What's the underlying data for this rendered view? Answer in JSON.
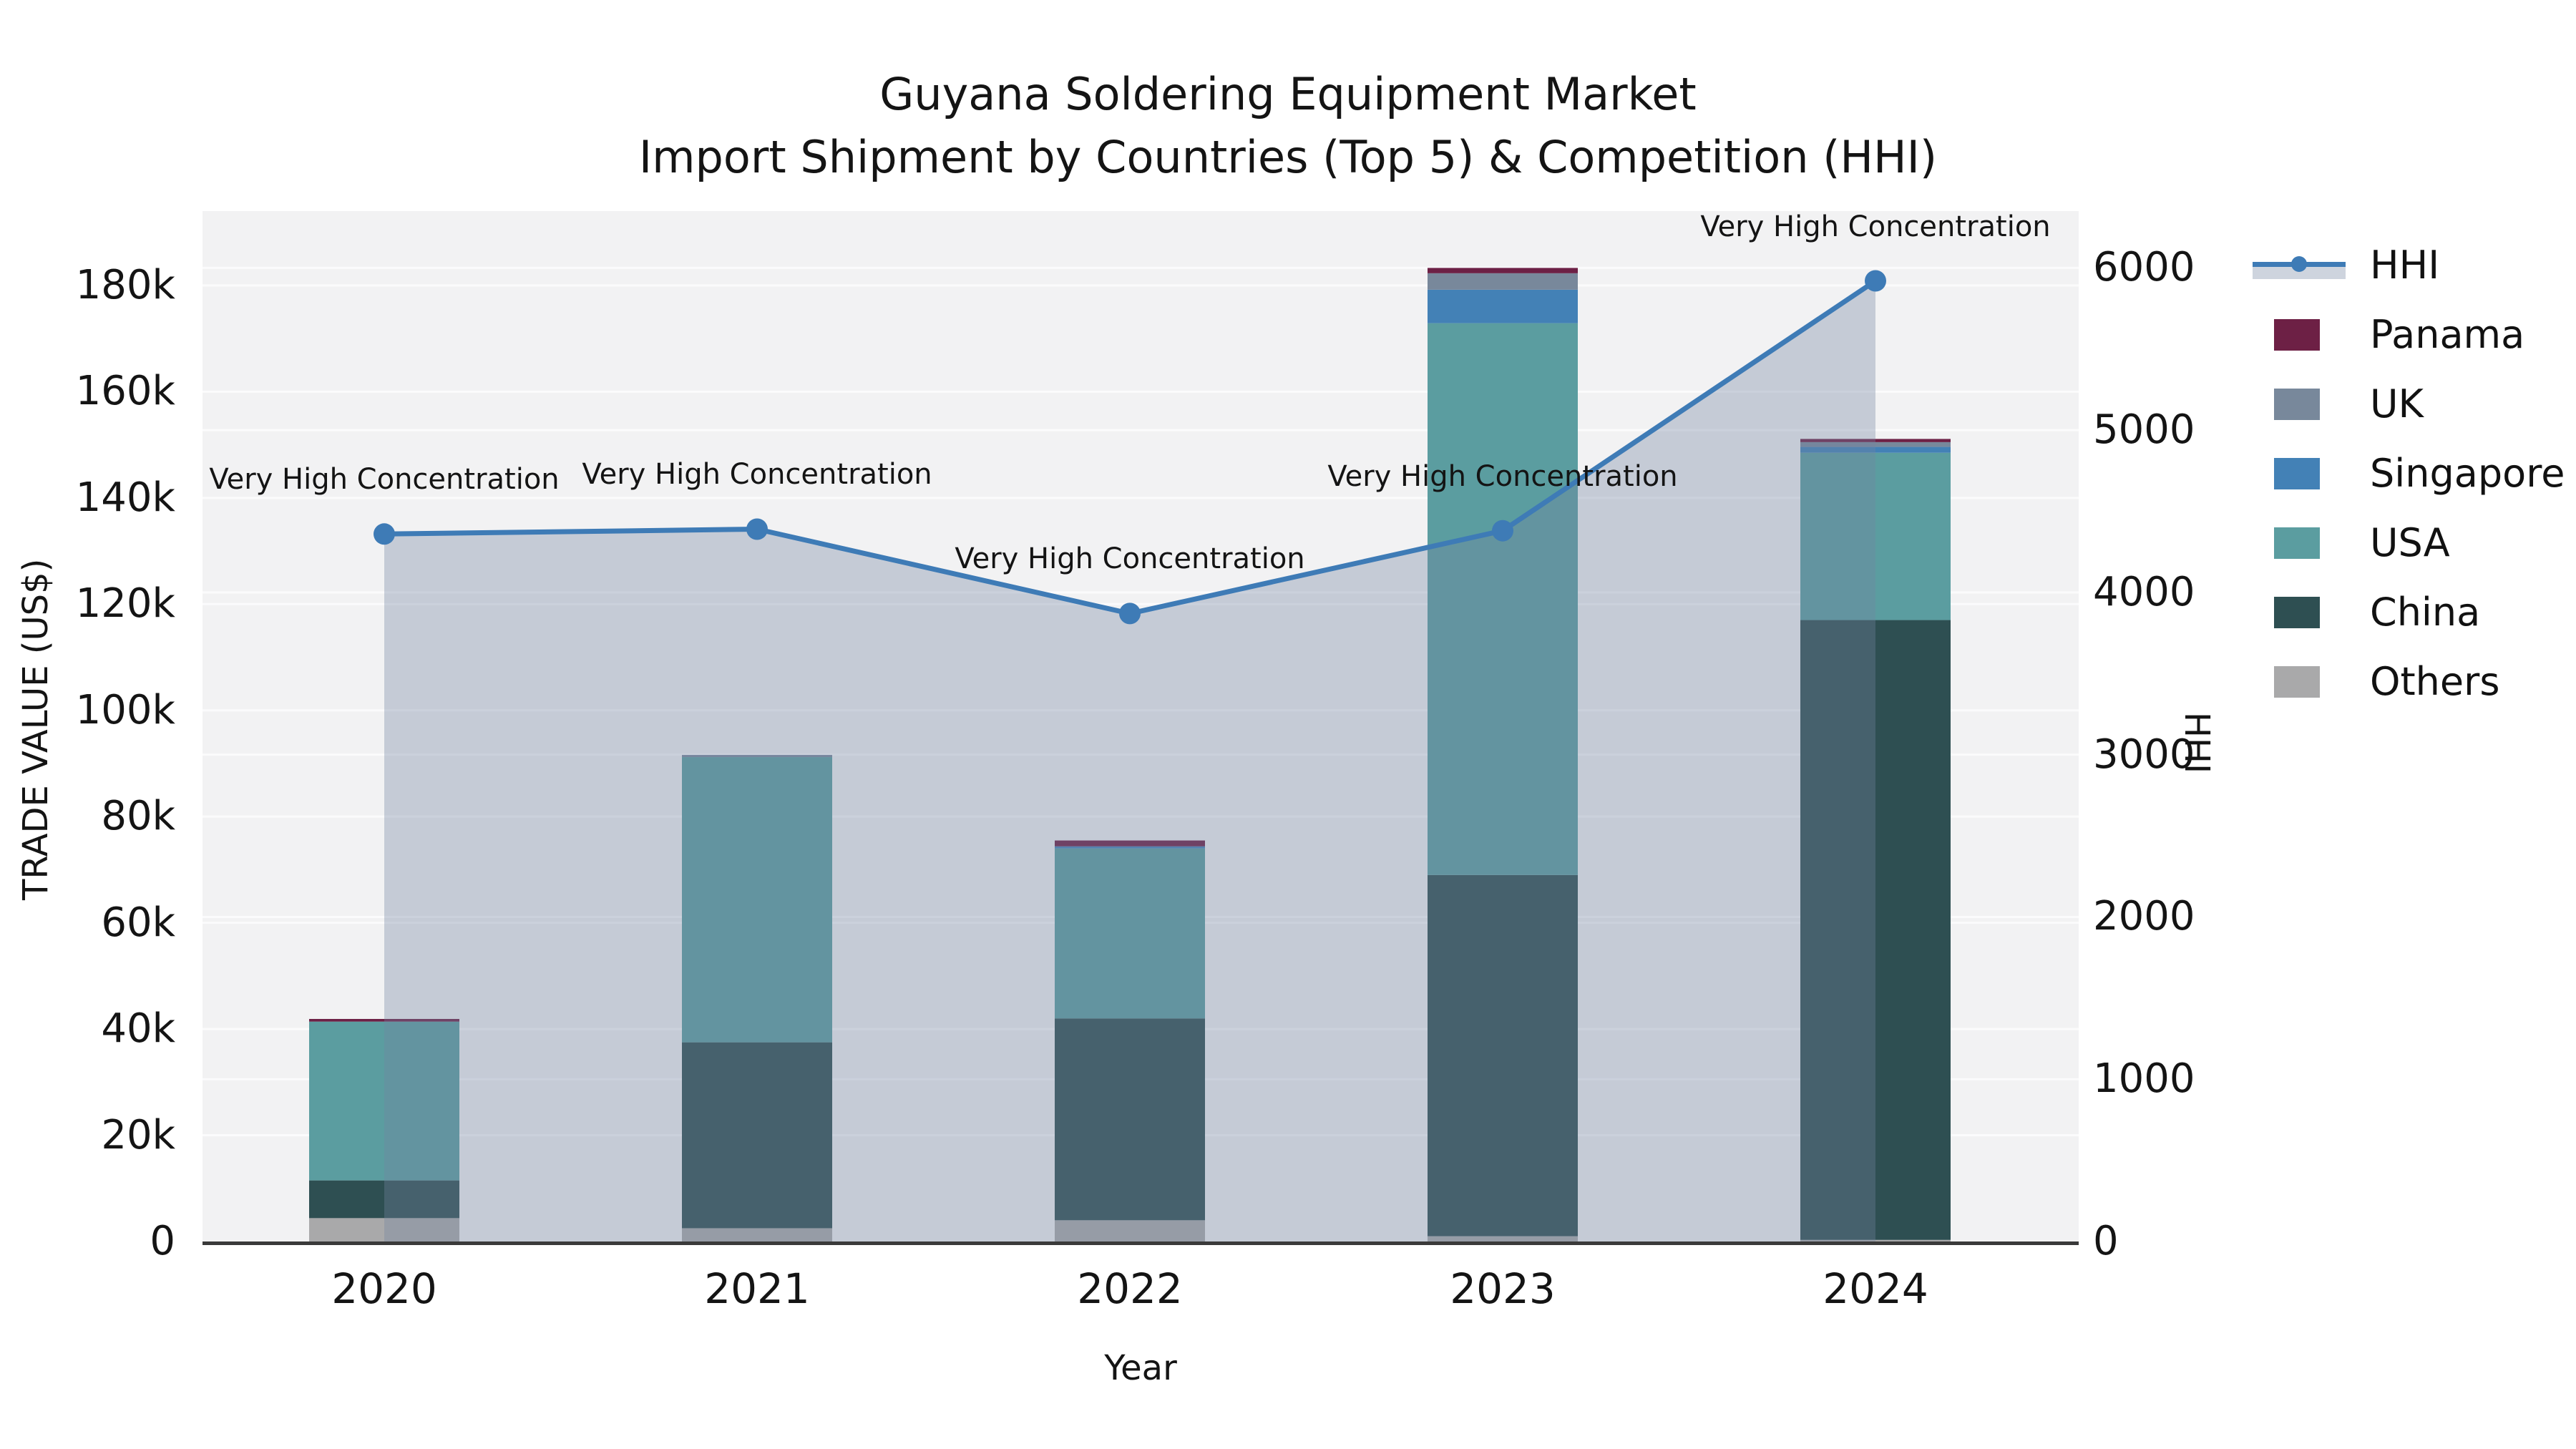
{
  "title": {
    "line1": "Guyana Soldering Equipment Market",
    "line2": "Import Shipment by Countries (Top 5) & Competition (HHI)"
  },
  "axes": {
    "x_label": "Year",
    "y_left_label": "TRADE VALUE (US$)",
    "y_right_label": "HHI",
    "x_tick_labels": [
      "2020",
      "2021",
      "2022",
      "2023",
      "2024"
    ],
    "y_left_tick_labels": [
      "0",
      "20k",
      "40k",
      "60k",
      "80k",
      "100k",
      "120k",
      "140k",
      "160k",
      "180k"
    ],
    "y_left_tick_values": [
      0,
      20000,
      40000,
      60000,
      80000,
      100000,
      120000,
      140000,
      160000,
      180000
    ],
    "y_right_tick_labels": [
      "0",
      "1000",
      "2000",
      "3000",
      "4000",
      "5000",
      "6000"
    ],
    "y_right_tick_values": [
      0,
      1000,
      2000,
      3000,
      4000,
      5000,
      6000
    ]
  },
  "legend": [
    {
      "label": "HHI",
      "type": "line",
      "color": "#3e7bb6"
    },
    {
      "label": "Panama",
      "type": "box",
      "color": "#6d2045"
    },
    {
      "label": "UK",
      "type": "box",
      "color": "#78889b"
    },
    {
      "label": "Singapore",
      "type": "box",
      "color": "#4381b6"
    },
    {
      "label": "USA",
      "type": "box",
      "color": "#5b9da0"
    },
    {
      "label": "China",
      "type": "box",
      "color": "#2e4f52"
    },
    {
      "label": "Others",
      "type": "box",
      "color": "#a9a9aa"
    }
  ],
  "colors": {
    "figure_background": "#ffffff",
    "plot_background": "#f2f2f3",
    "gridline": "rgba(255,255,255,0.7)",
    "axis_spine": "#3a3a3a",
    "hhi_line": "#3e7bb6",
    "hhi_area_fill": "rgba(116,133,160,0.35)",
    "text": "#141414"
  },
  "chart_data": {
    "type": "bar",
    "subtype": "stacked-bars-with-line-overlay",
    "title": "Guyana Soldering Equipment Market — Import Shipment by Countries (Top 5) & Competition (HHI)",
    "xlabel": "Year",
    "ylabel_left": "TRADE VALUE (US$)",
    "ylabel_right": "HHI",
    "categories": [
      "2020",
      "2021",
      "2022",
      "2023",
      "2024"
    ],
    "stack_order_bottom_to_top": [
      "Others",
      "China",
      "USA",
      "Singapore",
      "UK",
      "Panama"
    ],
    "series": [
      {
        "name": "Others",
        "color": "#a9a9aa",
        "values": [
          4400,
          2500,
          4000,
          1000,
          300
        ]
      },
      {
        "name": "China",
        "color": "#2e4f52",
        "values": [
          7100,
          35000,
          38000,
          68000,
          116700
        ]
      },
      {
        "name": "USA",
        "color": "#5b9da0",
        "values": [
          29900,
          53700,
          32000,
          103900,
          31500
        ]
      },
      {
        "name": "Singapore",
        "color": "#4381b6",
        "values": [
          0,
          0,
          400,
          6300,
          1100
        ]
      },
      {
        "name": "UK",
        "color": "#78889b",
        "values": [
          0,
          400,
          0,
          3100,
          900
        ]
      },
      {
        "name": "Panama",
        "color": "#6d2045",
        "values": [
          500,
          0,
          1100,
          1000,
          600
        ]
      }
    ],
    "bar_totals": [
      41900,
      91600,
      75500,
      183300,
      151100
    ],
    "line_series": {
      "name": "HHI",
      "axis": "right",
      "color": "#3e7bb6",
      "area_fill": "rgba(116,133,160,0.35)",
      "values": [
        4360,
        4390,
        3870,
        4380,
        5920
      ]
    },
    "annotations": [
      {
        "year": "2020",
        "text": "Very High Concentration"
      },
      {
        "year": "2021",
        "text": "Very High Concentration"
      },
      {
        "year": "2022",
        "text": "Very High Concentration"
      },
      {
        "year": "2023",
        "text": "Very High Concentration"
      },
      {
        "year": "2024",
        "text": "Very High Concentration"
      }
    ],
    "y_left_range": [
      0,
      194000
    ],
    "y_right_range": [
      0,
      6350
    ],
    "grid": true,
    "legend_position": "right"
  }
}
